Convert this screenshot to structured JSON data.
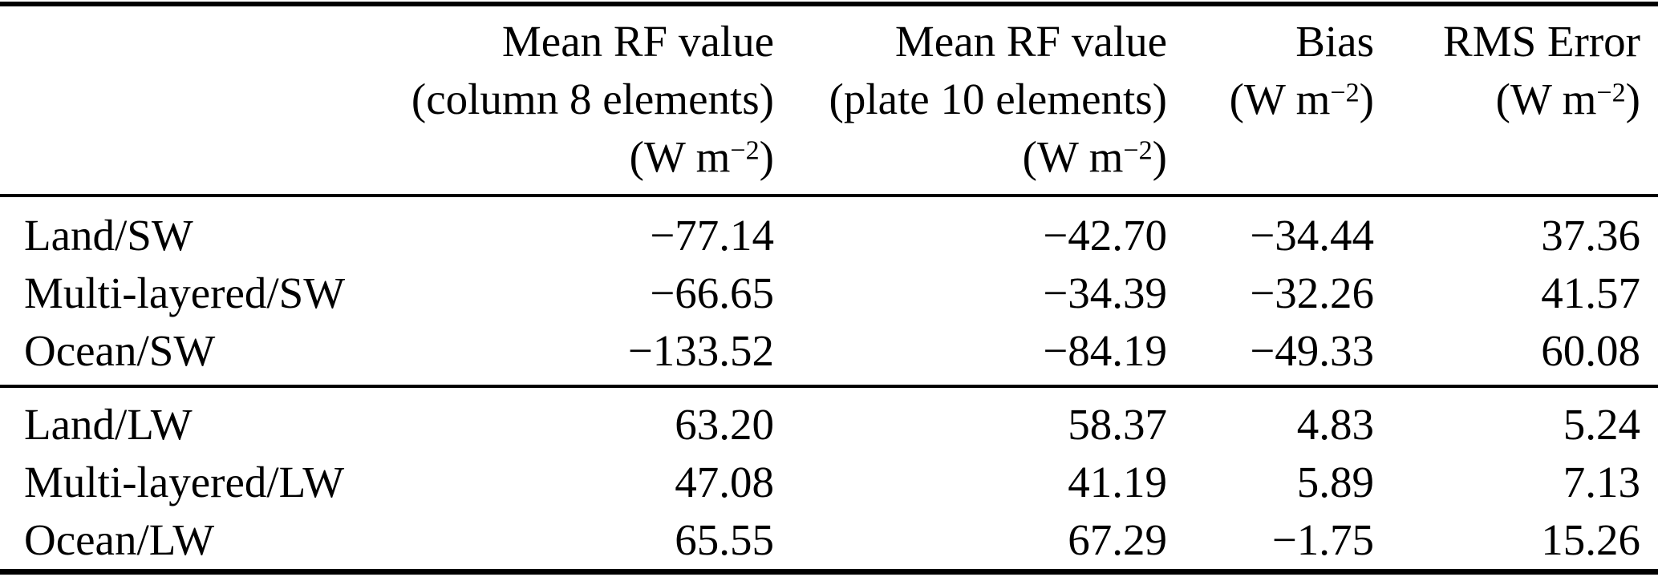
{
  "table": {
    "colors": {
      "text": "#000000",
      "rule": "#000000",
      "background": "#ffffff"
    },
    "header": {
      "col_label": "",
      "col_mean_rf_column": {
        "line1": "Mean RF value",
        "line2": "(column 8 elements)"
      },
      "col_mean_rf_plate": {
        "line1": "Mean RF value",
        "line2": "(plate 10 elements)"
      },
      "col_bias": {
        "line1": "Bias"
      },
      "col_rms_error": {
        "line1": "RMS Error"
      },
      "unit": {
        "prefix": "(W m",
        "sup": "−2",
        "suffix": ")"
      }
    },
    "rows_sw": [
      {
        "label": "Land/SW",
        "v1": "−77.14",
        "v2": "−42.70",
        "v3": "−34.44",
        "v4": "37.36"
      },
      {
        "label": "Multi-layered/SW",
        "v1": "−66.65",
        "v2": "−34.39",
        "v3": "−32.26",
        "v4": "41.57"
      },
      {
        "label": "Ocean/SW",
        "v1": "−133.52",
        "v2": "−84.19",
        "v3": "−49.33",
        "v4": "60.08"
      }
    ],
    "rows_lw": [
      {
        "label": "Land/LW",
        "v1": "63.20",
        "v2": "58.37",
        "v3": "4.83",
        "v4": "5.24"
      },
      {
        "label": "Multi-layered/LW",
        "v1": "47.08",
        "v2": "41.19",
        "v3": "5.89",
        "v4": "7.13"
      },
      {
        "label": "Ocean/LW",
        "v1": "65.55",
        "v2": "67.29",
        "v3": "−1.75",
        "v4": "15.26"
      }
    ]
  }
}
